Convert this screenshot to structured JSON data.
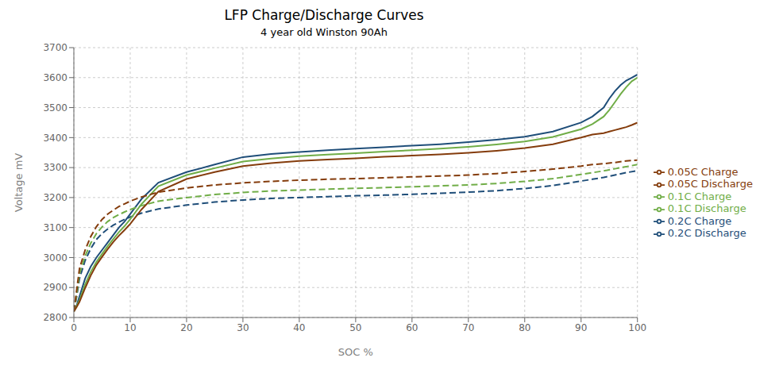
{
  "chart_data": {
    "type": "line",
    "title": "LFP Charge/Discharge Curves",
    "subtitle": "4 year old Winston 90Ah",
    "xlabel": "SOC %",
    "ylabel": "Voltage mV",
    "xlim": [
      0,
      100
    ],
    "ylim": [
      2800,
      3700
    ],
    "xticks": [
      0,
      10,
      20,
      30,
      40,
      50,
      60,
      70,
      80,
      90,
      100
    ],
    "yticks": [
      2800,
      2900,
      3000,
      3100,
      3200,
      3300,
      3400,
      3500,
      3600,
      3700
    ],
    "grid": true,
    "legend": "right",
    "series": [
      {
        "name": "0.2C Charge",
        "color": "#1f4e79",
        "line_style": "solid",
        "x": [
          0,
          0.5,
          1,
          2,
          3,
          4,
          5,
          6,
          7,
          8,
          9,
          10,
          12,
          15,
          20,
          25,
          30,
          35,
          40,
          45,
          50,
          55,
          60,
          65,
          70,
          75,
          80,
          85,
          90,
          92,
          94,
          95,
          96,
          97,
          98,
          99,
          100
        ],
        "values": [
          2820,
          2840,
          2870,
          2930,
          2970,
          3000,
          3025,
          3050,
          3075,
          3100,
          3120,
          3145,
          3195,
          3250,
          3285,
          3310,
          3335,
          3345,
          3352,
          3358,
          3363,
          3368,
          3373,
          3378,
          3385,
          3393,
          3403,
          3420,
          3450,
          3470,
          3500,
          3530,
          3555,
          3575,
          3590,
          3600,
          3610
        ]
      },
      {
        "name": "0.2C Discharge",
        "color": "#1f4e79",
        "line_style": "dashed",
        "x": [
          0,
          0.5,
          1,
          2,
          3,
          4,
          5,
          6,
          7,
          8,
          9,
          10,
          12,
          15,
          20,
          25,
          30,
          35,
          40,
          45,
          50,
          55,
          60,
          65,
          70,
          75,
          80,
          85,
          90,
          92,
          94,
          96,
          98,
          100
        ],
        "values": [
          2820,
          2870,
          2930,
          2990,
          3030,
          3060,
          3080,
          3095,
          3108,
          3118,
          3127,
          3135,
          3148,
          3162,
          3175,
          3185,
          3192,
          3197,
          3200,
          3203,
          3206,
          3208,
          3211,
          3214,
          3218,
          3223,
          3230,
          3240,
          3255,
          3261,
          3267,
          3275,
          3283,
          3290
        ]
      },
      {
        "name": "0.1C Charge",
        "color": "#70ad47",
        "line_style": "solid",
        "x": [
          0,
          0.5,
          1,
          2,
          3,
          4,
          5,
          6,
          7,
          8,
          9,
          10,
          12,
          15,
          20,
          25,
          30,
          35,
          40,
          45,
          50,
          55,
          60,
          65,
          70,
          75,
          80,
          85,
          90,
          92,
          94,
          95,
          96,
          97,
          98,
          99,
          100
        ],
        "values": [
          2820,
          2838,
          2858,
          2910,
          2952,
          2985,
          3012,
          3038,
          3062,
          3085,
          3105,
          3128,
          3178,
          3238,
          3275,
          3298,
          3320,
          3330,
          3338,
          3343,
          3348,
          3353,
          3358,
          3363,
          3369,
          3377,
          3387,
          3402,
          3428,
          3445,
          3470,
          3492,
          3518,
          3545,
          3568,
          3588,
          3600
        ]
      },
      {
        "name": "0.1C Discharge",
        "color": "#70ad47",
        "line_style": "dashed",
        "x": [
          0,
          0.5,
          1,
          2,
          3,
          4,
          5,
          6,
          7,
          8,
          9,
          10,
          12,
          15,
          20,
          25,
          30,
          35,
          40,
          45,
          50,
          55,
          60,
          65,
          70,
          75,
          80,
          85,
          90,
          92,
          94,
          96,
          98,
          100
        ],
        "values": [
          2820,
          2878,
          2945,
          3005,
          3048,
          3080,
          3102,
          3120,
          3133,
          3143,
          3152,
          3160,
          3173,
          3188,
          3200,
          3210,
          3217,
          3222,
          3225,
          3228,
          3231,
          3233,
          3236,
          3239,
          3242,
          3247,
          3254,
          3263,
          3277,
          3283,
          3289,
          3296,
          3303,
          3310
        ]
      },
      {
        "name": "0.05C Charge",
        "color": "#843c0c",
        "line_style": "solid",
        "x": [
          0,
          0.5,
          1,
          2,
          3,
          4,
          5,
          6,
          7,
          8,
          9,
          10,
          12,
          15,
          20,
          25,
          30,
          35,
          40,
          45,
          50,
          55,
          60,
          65,
          70,
          75,
          80,
          85,
          90,
          92,
          94,
          95,
          96,
          97,
          98,
          99,
          100
        ],
        "values": [
          2820,
          2835,
          2852,
          2898,
          2940,
          2975,
          3002,
          3028,
          3052,
          3073,
          3092,
          3112,
          3160,
          3220,
          3262,
          3285,
          3305,
          3315,
          3322,
          3327,
          3331,
          3336,
          3340,
          3344,
          3349,
          3356,
          3365,
          3378,
          3400,
          3410,
          3415,
          3420,
          3425,
          3430,
          3435,
          3442,
          3450
        ]
      },
      {
        "name": "0.05C Discharge",
        "color": "#843c0c",
        "line_style": "dashed",
        "x": [
          0,
          0.5,
          1,
          2,
          3,
          4,
          5,
          6,
          7,
          8,
          9,
          10,
          12,
          15,
          20,
          25,
          30,
          35,
          40,
          45,
          50,
          55,
          60,
          65,
          70,
          75,
          80,
          85,
          90,
          92,
          94,
          96,
          98,
          100
        ],
        "values": [
          2820,
          2892,
          2963,
          3025,
          3070,
          3103,
          3127,
          3145,
          3158,
          3170,
          3179,
          3188,
          3202,
          3218,
          3232,
          3242,
          3249,
          3254,
          3258,
          3261,
          3263,
          3266,
          3269,
          3272,
          3275,
          3280,
          3287,
          3295,
          3305,
          3310,
          3313,
          3317,
          3322,
          3325
        ]
      }
    ]
  }
}
